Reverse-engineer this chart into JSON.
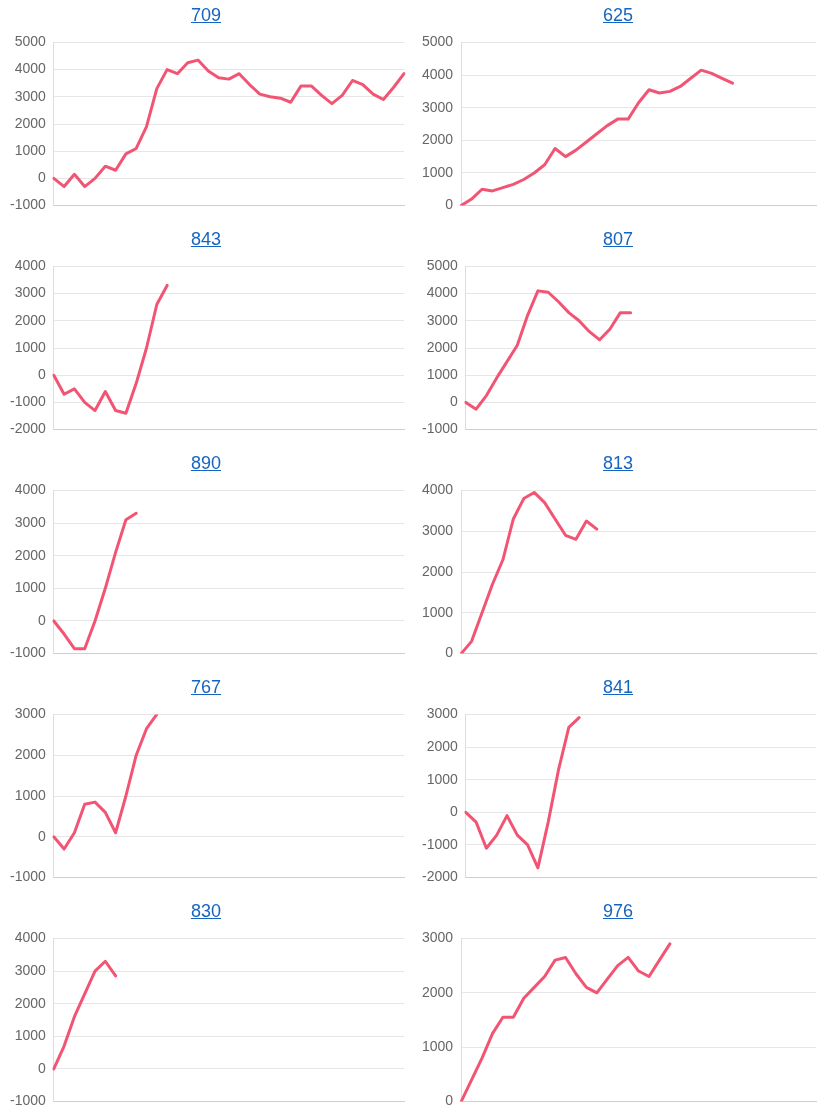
{
  "chart_data": [
    {
      "type": "line",
      "title": "709",
      "categories": [
        null,
        null,
        null,
        null,
        null,
        null,
        null,
        null,
        null,
        null,
        null,
        null,
        null,
        null,
        null,
        null,
        null,
        null,
        null,
        null,
        null,
        null,
        null,
        null,
        null,
        null,
        null,
        null,
        null,
        null,
        null,
        null,
        null,
        null,
        null
      ],
      "series": [
        {
          "color": "#f25574",
          "values": [
            0,
            -300,
            150,
            -300,
            0,
            450,
            300,
            900,
            1100,
            1900,
            3300,
            4000,
            3850,
            4250,
            4350,
            3950,
            3700,
            3650,
            3850,
            3450,
            3100,
            3000,
            2950,
            2800,
            3400,
            3400,
            3050,
            2750,
            3050,
            3600,
            3450,
            3100,
            2900,
            3350,
            3850
          ]
        }
      ],
      "ylim": [
        -1000,
        5000
      ],
      "yticks": [
        -1000,
        0,
        1000,
        2000,
        3000,
        4000,
        5000
      ],
      "grid": "y",
      "tick_labels": "y",
      "marker": "none"
    },
    {
      "type": "line",
      "title": "625",
      "categories": [
        null,
        null,
        null,
        null,
        null,
        null,
        null,
        null,
        null,
        null,
        null,
        null,
        null,
        null,
        null,
        null,
        null,
        null,
        null,
        null,
        null,
        null,
        null,
        null,
        null,
        null,
        null,
        null,
        null,
        null,
        null,
        null,
        null,
        null,
        null
      ],
      "series": [
        {
          "color": "#f25574",
          "values": [
            0,
            200,
            500,
            450,
            550,
            650,
            800,
            1000,
            1250,
            1750,
            1500,
            1700,
            1950,
            2200,
            2450,
            2650,
            2650,
            3150,
            3550,
            3450,
            3500,
            3650,
            3900,
            4150,
            4050,
            3900,
            3750,
            null,
            null,
            null,
            null,
            null,
            null,
            null,
            null
          ]
        }
      ],
      "ylim": [
        0,
        5000
      ],
      "yticks": [
        0,
        1000,
        2000,
        3000,
        4000,
        5000
      ],
      "grid": "y",
      "tick_labels": "y",
      "marker": "none"
    },
    {
      "type": "line",
      "title": "843",
      "categories": [
        null,
        null,
        null,
        null,
        null,
        null,
        null,
        null,
        null,
        null,
        null,
        null,
        null,
        null,
        null,
        null,
        null,
        null,
        null,
        null,
        null,
        null,
        null,
        null,
        null,
        null,
        null,
        null,
        null,
        null,
        null,
        null,
        null,
        null,
        null
      ],
      "series": [
        {
          "color": "#f25574",
          "values": [
            0,
            -700,
            -500,
            -1000,
            -1300,
            -600,
            -1300,
            -1400,
            -300,
            1000,
            2600,
            3300,
            null,
            null,
            null,
            null,
            null,
            null,
            null,
            null,
            null,
            null,
            null,
            null,
            null,
            null,
            null,
            null,
            null,
            null,
            null,
            null,
            null,
            null,
            null
          ]
        }
      ],
      "ylim": [
        -2000,
        4000
      ],
      "yticks": [
        -2000,
        -1000,
        0,
        1000,
        2000,
        3000,
        4000
      ],
      "grid": "y",
      "tick_labels": "y",
      "marker": "none"
    },
    {
      "type": "line",
      "title": "807",
      "categories": [
        null,
        null,
        null,
        null,
        null,
        null,
        null,
        null,
        null,
        null,
        null,
        null,
        null,
        null,
        null,
        null,
        null,
        null,
        null,
        null,
        null,
        null,
        null,
        null,
        null,
        null,
        null,
        null,
        null,
        null,
        null,
        null,
        null,
        null,
        null
      ],
      "series": [
        {
          "color": "#f25574",
          "values": [
            0,
            -250,
            250,
            900,
            1500,
            2100,
            3200,
            4100,
            4050,
            3700,
            3300,
            3000,
            2600,
            2300,
            2700,
            3300,
            3300,
            null,
            null,
            null,
            null,
            null,
            null,
            null,
            null,
            null,
            null,
            null,
            null,
            null,
            null,
            null,
            null,
            null,
            null
          ]
        }
      ],
      "ylim": [
        -1000,
        5000
      ],
      "yticks": [
        -1000,
        0,
        1000,
        2000,
        3000,
        4000,
        5000
      ],
      "grid": "y",
      "tick_labels": "y",
      "marker": "none"
    },
    {
      "type": "line",
      "title": "890",
      "categories": [
        null,
        null,
        null,
        null,
        null,
        null,
        null,
        null,
        null,
        null,
        null,
        null,
        null,
        null,
        null,
        null,
        null,
        null,
        null,
        null,
        null,
        null,
        null,
        null,
        null,
        null,
        null,
        null,
        null,
        null,
        null,
        null,
        null,
        null,
        null
      ],
      "series": [
        {
          "color": "#f25574",
          "values": [
            0,
            -400,
            -850,
            -850,
            0,
            1000,
            2100,
            3100,
            3300,
            null,
            null,
            null,
            null,
            null,
            null,
            null,
            null,
            null,
            null,
            null,
            null,
            null,
            null,
            null,
            null,
            null,
            null,
            null,
            null,
            null,
            null,
            null,
            null,
            null,
            null
          ]
        }
      ],
      "ylim": [
        -1000,
        4000
      ],
      "yticks": [
        -1000,
        0,
        1000,
        2000,
        3000,
        4000
      ],
      "grid": "y",
      "tick_labels": "y",
      "marker": "none"
    },
    {
      "type": "line",
      "title": "813",
      "categories": [
        null,
        null,
        null,
        null,
        null,
        null,
        null,
        null,
        null,
        null,
        null,
        null,
        null,
        null,
        null,
        null,
        null,
        null,
        null,
        null,
        null,
        null,
        null,
        null,
        null,
        null,
        null,
        null,
        null,
        null,
        null,
        null,
        null,
        null,
        null
      ],
      "series": [
        {
          "color": "#f25574",
          "values": [
            0,
            300,
            1000,
            1700,
            2300,
            3300,
            3800,
            3950,
            3700,
            3300,
            2900,
            2800,
            3250,
            3050,
            null,
            null,
            null,
            null,
            null,
            null,
            null,
            null,
            null,
            null,
            null,
            null,
            null,
            null,
            null,
            null,
            null,
            null,
            null,
            null,
            null
          ]
        }
      ],
      "ylim": [
        0,
        4000
      ],
      "yticks": [
        0,
        1000,
        2000,
        3000,
        4000
      ],
      "grid": "y",
      "tick_labels": "y",
      "marker": "none"
    },
    {
      "type": "line",
      "title": "767",
      "categories": [
        null,
        null,
        null,
        null,
        null,
        null,
        null,
        null,
        null,
        null,
        null,
        null,
        null,
        null,
        null,
        null,
        null,
        null,
        null,
        null,
        null,
        null,
        null,
        null,
        null,
        null,
        null,
        null,
        null,
        null,
        null,
        null,
        null,
        null,
        null
      ],
      "series": [
        {
          "color": "#f25574",
          "values": [
            0,
            -300,
            100,
            800,
            850,
            600,
            100,
            1000,
            2000,
            2650,
            3000,
            null,
            null,
            null,
            null,
            null,
            null,
            null,
            null,
            null,
            null,
            null,
            null,
            null,
            null,
            null,
            null,
            null,
            null,
            null,
            null,
            null,
            null,
            null,
            null
          ]
        }
      ],
      "ylim": [
        -1000,
        3000
      ],
      "yticks": [
        -1000,
        0,
        1000,
        2000,
        3000
      ],
      "grid": "y",
      "tick_labels": "y",
      "marker": "none"
    },
    {
      "type": "line",
      "title": "841",
      "categories": [
        null,
        null,
        null,
        null,
        null,
        null,
        null,
        null,
        null,
        null,
        null,
        null,
        null,
        null,
        null,
        null,
        null,
        null,
        null,
        null,
        null,
        null,
        null,
        null,
        null,
        null,
        null,
        null,
        null,
        null,
        null,
        null,
        null,
        null,
        null
      ],
      "series": [
        {
          "color": "#f25574",
          "values": [
            0,
            -300,
            -1100,
            -700,
            -100,
            -700,
            -1000,
            -1700,
            -300,
            1300,
            2600,
            2900,
            null,
            null,
            null,
            null,
            null,
            null,
            null,
            null,
            null,
            null,
            null,
            null,
            null,
            null,
            null,
            null,
            null,
            null,
            null,
            null,
            null,
            null,
            null
          ]
        }
      ],
      "ylim": [
        -2000,
        3000
      ],
      "yticks": [
        -2000,
        -1000,
        0,
        1000,
        2000,
        3000
      ],
      "grid": "y",
      "tick_labels": "y",
      "marker": "none"
    },
    {
      "type": "line",
      "title": "830",
      "categories": [
        null,
        null,
        null,
        null,
        null,
        null,
        null,
        null,
        null,
        null,
        null,
        null,
        null,
        null,
        null,
        null,
        null,
        null,
        null,
        null,
        null,
        null,
        null,
        null,
        null,
        null,
        null,
        null,
        null,
        null,
        null,
        null,
        null,
        null,
        null
      ],
      "series": [
        {
          "color": "#f25574",
          "values": [
            0,
            700,
            1600,
            2300,
            3000,
            3300,
            2850,
            null,
            null,
            null,
            null,
            null,
            null,
            null,
            null,
            null,
            null,
            null,
            null,
            null,
            null,
            null,
            null,
            null,
            null,
            null,
            null,
            null,
            null,
            null,
            null,
            null,
            null,
            null,
            null
          ]
        }
      ],
      "ylim": [
        -1000,
        4000
      ],
      "yticks": [
        -1000,
        0,
        1000,
        2000,
        3000,
        4000
      ],
      "grid": "y",
      "tick_labels": "y",
      "marker": "none"
    },
    {
      "type": "line",
      "title": "976",
      "categories": [
        null,
        null,
        null,
        null,
        null,
        null,
        null,
        null,
        null,
        null,
        null,
        null,
        null,
        null,
        null,
        null,
        null,
        null,
        null,
        null,
        null,
        null,
        null,
        null,
        null,
        null,
        null,
        null,
        null,
        null,
        null,
        null,
        null,
        null,
        null
      ],
      "series": [
        {
          "color": "#f25574",
          "values": [
            0,
            400,
            800,
            1250,
            1550,
            1550,
            1900,
            2100,
            2300,
            2600,
            2650,
            2350,
            2100,
            2000,
            2250,
            2500,
            2650,
            2400,
            2300,
            2600,
            2900,
            null,
            null,
            null,
            null,
            null,
            null,
            null,
            null,
            null,
            null,
            null,
            null,
            null,
            null
          ]
        }
      ],
      "ylim": [
        0,
        3000
      ],
      "yticks": [
        0,
        1000,
        2000,
        3000
      ],
      "grid": "y",
      "tick_labels": "y",
      "marker": "none"
    }
  ]
}
